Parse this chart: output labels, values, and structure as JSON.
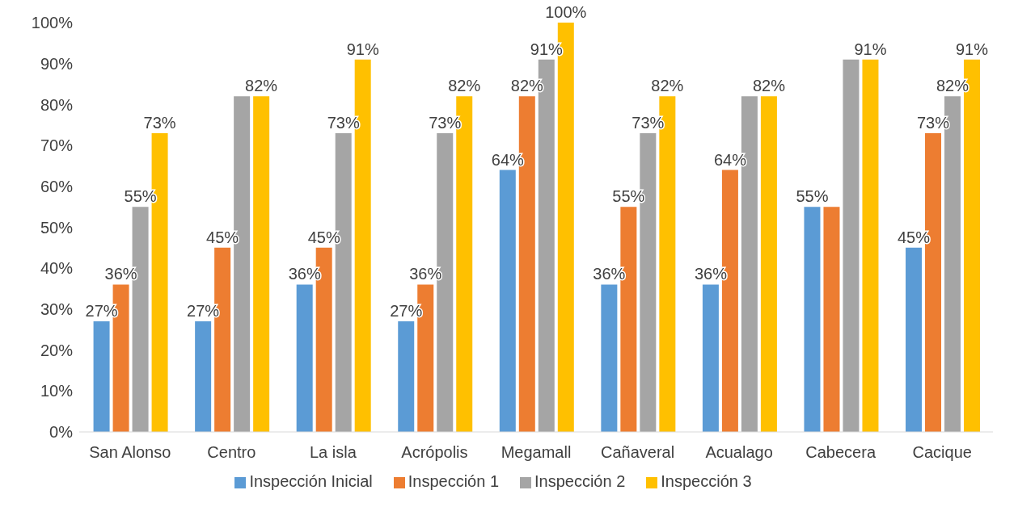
{
  "chart_data": {
    "type": "bar",
    "categories": [
      "San Alonso",
      "Centro",
      "La isla",
      "Acrópolis",
      "Megamall",
      "Cañaveral",
      "Acualago",
      "Cabecera",
      "Cacique"
    ],
    "series": [
      {
        "name": "Inspección Inicial",
        "color": "#5b9bd5",
        "values": [
          27,
          27,
          36,
          27,
          64,
          36,
          36,
          55,
          45
        ],
        "value_labels": [
          "27%",
          "27%",
          "36%",
          "27%",
          "64%",
          "36%",
          "36%",
          "55%",
          "45%"
        ]
      },
      {
        "name": "Inspección 1",
        "color": "#ed7d31",
        "values": [
          36,
          45,
          45,
          36,
          82,
          55,
          64,
          55,
          73
        ],
        "value_labels": [
          "36%",
          "45%",
          "45%",
          "36%",
          "82%",
          "55%",
          "64%",
          null,
          "73%"
        ]
      },
      {
        "name": "Inspección 2",
        "color": "#a5a5a5",
        "values": [
          55,
          82,
          73,
          73,
          91,
          73,
          82,
          91,
          82
        ],
        "value_labels": [
          "55%",
          null,
          "73%",
          "73%",
          "91%",
          "73%",
          null,
          null,
          "82%"
        ]
      },
      {
        "name": "Inspección 3",
        "color": "#ffc000",
        "values": [
          73,
          82,
          91,
          82,
          100,
          82,
          82,
          91,
          91
        ],
        "value_labels": [
          "73%",
          "82%",
          "91%",
          "82%",
          "100%",
          "82%",
          "82%",
          "91%",
          "91%"
        ]
      }
    ],
    "ylim": [
      0,
      100
    ],
    "yticks": [
      {
        "value": 0,
        "label": "0%"
      },
      {
        "value": 10,
        "label": "10%"
      },
      {
        "value": 20,
        "label": "20%"
      },
      {
        "value": 30,
        "label": "30%"
      },
      {
        "value": 40,
        "label": "40%"
      },
      {
        "value": 50,
        "label": "50%"
      },
      {
        "value": 60,
        "label": "60%"
      },
      {
        "value": 70,
        "label": "70%"
      },
      {
        "value": 80,
        "label": "80%"
      },
      {
        "value": 90,
        "label": "90%"
      },
      {
        "value": 100,
        "label": "100%"
      }
    ],
    "grid": false,
    "legend": "bottom"
  }
}
